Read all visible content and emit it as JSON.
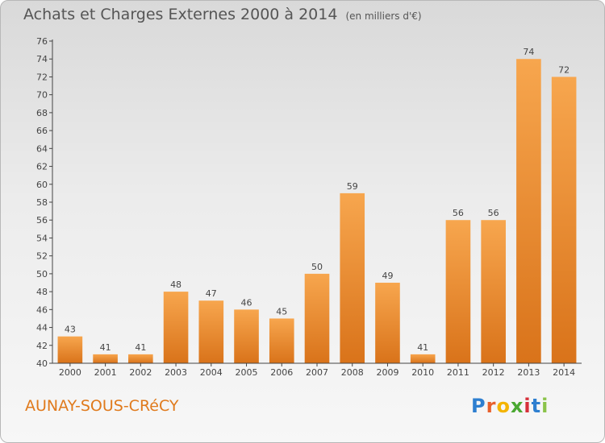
{
  "header": {
    "title": "Achats et Charges Externes 2000 à 2014",
    "unit_note": "(en milliers d'€)"
  },
  "footer": {
    "commune": "AUNAY-SOUS-CRéCY",
    "logo_letters": [
      "P",
      "r",
      "o",
      "x",
      "i",
      "t",
      "i"
    ],
    "logo_colors": [
      "#2e7fd0",
      "#e8602c",
      "#f4b400",
      "#4aa832",
      "#d6303a",
      "#2e7fd0",
      "#8bc34a"
    ]
  },
  "chart_data": {
    "type": "bar",
    "title": "Achats et Charges Externes 2000 à 2014",
    "subtitle": "(en milliers d'€)",
    "categories": [
      "2000",
      "2001",
      "2002",
      "2003",
      "2004",
      "2005",
      "2006",
      "2007",
      "2008",
      "2009",
      "2010",
      "2011",
      "2012",
      "2013",
      "2014"
    ],
    "values": [
      43,
      41,
      41,
      48,
      47,
      46,
      45,
      50,
      59,
      49,
      41,
      56,
      56,
      74,
      72
    ],
    "data_labels": [
      "43",
      "41",
      "41",
      "48",
      "47",
      "46",
      "45",
      "50",
      "59",
      "49",
      "41",
      "56",
      "56",
      "74",
      "72"
    ],
    "yticks": [
      "40",
      "42",
      "44",
      "46",
      "48",
      "50",
      "52",
      "54",
      "56",
      "58",
      "60",
      "62",
      "64",
      "66",
      "68",
      "70",
      "72",
      "74",
      "76"
    ],
    "ylim": [
      40,
      76
    ],
    "grid": false,
    "bar_color_top": "#f7a64e",
    "bar_color_bottom": "#d9731a"
  }
}
